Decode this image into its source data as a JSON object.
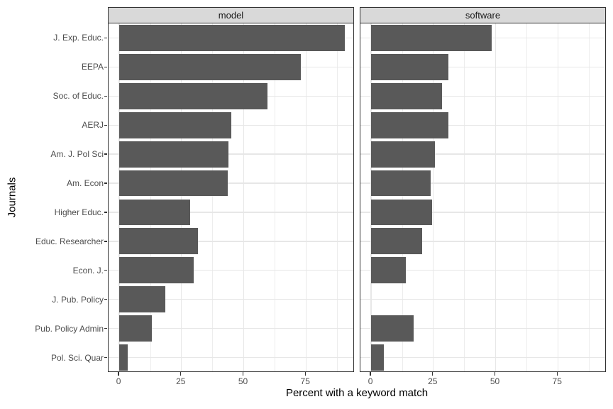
{
  "chart_data": {
    "type": "bar",
    "orientation": "horizontal",
    "title": "",
    "xlabel": "Percent with a keyword match",
    "ylabel": "Journals",
    "categories": [
      "J. Exp. Educ.",
      "EEPA",
      "Soc. of Educ.",
      "AERJ",
      "Am. J. Pol Sci",
      "Am. Econ",
      "Higher Educ.",
      "Educ. Researcher",
      "Econ. J.",
      "J. Pub. Policy",
      "Pub. Policy Admin",
      "Pol. Sci. Quar"
    ],
    "facets": [
      {
        "label": "model",
        "values": [
          90.5,
          73,
          59.5,
          45,
          44,
          43.5,
          28.5,
          31.5,
          30,
          18.5,
          13,
          3.5
        ]
      },
      {
        "label": "software",
        "values": [
          48.5,
          31,
          28.5,
          31,
          25.5,
          24,
          24.5,
          20.5,
          14,
          0,
          17,
          5
        ]
      }
    ],
    "x_ticks": [
      0,
      25,
      50,
      75
    ],
    "x_minor_ticks": [
      12.5,
      37.5,
      62.5,
      87.5
    ],
    "x_domain": [
      -4.3,
      94.6
    ],
    "grid": true,
    "legend": "none",
    "colors": {
      "bar_fill": "#595959",
      "strip_bg": "#d9d9d9",
      "panel_border": "#333333",
      "grid_major": "#e7e7e7",
      "grid_minor": "#ededed",
      "axis_text": "#4d4d4d",
      "axis_title": "#000000",
      "tick_mark": "#333333"
    }
  }
}
